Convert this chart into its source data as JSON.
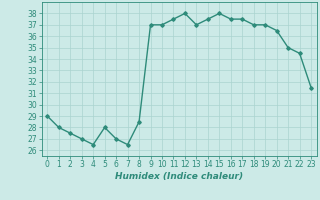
{
  "x": [
    0,
    1,
    2,
    3,
    4,
    5,
    6,
    7,
    8,
    9,
    10,
    11,
    12,
    13,
    14,
    15,
    16,
    17,
    18,
    19,
    20,
    21,
    22,
    23
  ],
  "y": [
    29,
    28,
    27.5,
    27,
    26.5,
    28,
    27,
    26.5,
    28.5,
    37,
    37,
    37.5,
    38,
    37,
    37.5,
    38,
    37.5,
    37.5,
    37,
    37,
    36.5,
    35,
    34.5,
    31.5
  ],
  "title": "",
  "xlabel": "Humidex (Indice chaleur)",
  "ylabel": "",
  "ylim": [
    25.5,
    39.0
  ],
  "xlim": [
    -0.5,
    23.5
  ],
  "yticks": [
    26,
    27,
    28,
    29,
    30,
    31,
    32,
    33,
    34,
    35,
    36,
    37,
    38
  ],
  "xticks": [
    0,
    1,
    2,
    3,
    4,
    5,
    6,
    7,
    8,
    9,
    10,
    11,
    12,
    13,
    14,
    15,
    16,
    17,
    18,
    19,
    20,
    21,
    22,
    23
  ],
  "line_color": "#2e8b7a",
  "marker": "D",
  "marker_size": 1.8,
  "bg_color": "#cceae7",
  "grid_color": "#aad4d0",
  "line_width": 1.0,
  "tick_fontsize": 5.5,
  "xlabel_fontsize": 6.5
}
